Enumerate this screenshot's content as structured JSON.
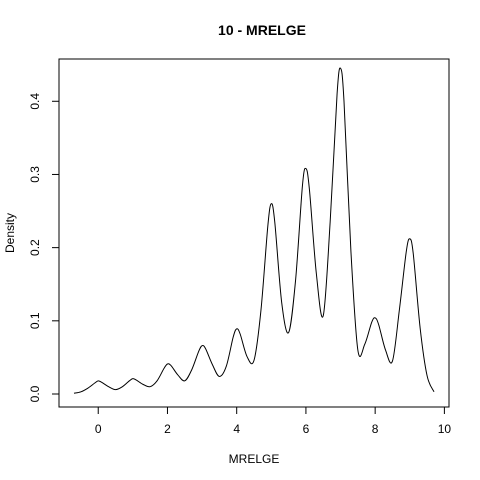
{
  "chart_data": {
    "type": "line",
    "title": "10 - MRELGE",
    "xlabel": "MRELGE",
    "ylabel": "Density",
    "xlim": [
      -0.7,
      9.7
    ],
    "ylim": [
      0.0,
      0.44
    ],
    "x_ticks": [
      0,
      2,
      4,
      6,
      8,
      10
    ],
    "x_tick_labels": [
      "0",
      "2",
      "4",
      "6",
      "8",
      "10"
    ],
    "y_ticks": [
      0.0,
      0.1,
      0.2,
      0.3,
      0.4
    ],
    "y_tick_labels": [
      "0.0",
      "0.1",
      "0.2",
      "0.3",
      "0.4"
    ],
    "grid": false,
    "legend": "none",
    "line_color": "#000000",
    "x": [
      -0.7,
      -0.5,
      -0.3,
      -0.1,
      0.0,
      0.1,
      0.3,
      0.5,
      0.7,
      0.9,
      1.0,
      1.1,
      1.3,
      1.5,
      1.7,
      1.9,
      2.0,
      2.1,
      2.3,
      2.5,
      2.7,
      2.9,
      3.0,
      3.1,
      3.3,
      3.5,
      3.7,
      3.9,
      4.0,
      4.1,
      4.3,
      4.5,
      4.7,
      4.9,
      5.0,
      5.1,
      5.3,
      5.5,
      5.7,
      5.9,
      6.0,
      6.1,
      6.3,
      6.5,
      6.7,
      6.9,
      7.0,
      7.1,
      7.3,
      7.5,
      7.7,
      7.9,
      8.0,
      8.1,
      8.3,
      8.5,
      8.7,
      8.9,
      9.0,
      9.1,
      9.3,
      9.5,
      9.7
    ],
    "y": [
      0.001,
      0.003,
      0.008,
      0.015,
      0.018,
      0.016,
      0.01,
      0.006,
      0.01,
      0.018,
      0.021,
      0.019,
      0.013,
      0.01,
      0.018,
      0.035,
      0.041,
      0.039,
      0.026,
      0.018,
      0.033,
      0.058,
      0.066,
      0.062,
      0.04,
      0.024,
      0.038,
      0.078,
      0.089,
      0.082,
      0.051,
      0.046,
      0.114,
      0.23,
      0.26,
      0.235,
      0.125,
      0.084,
      0.155,
      0.285,
      0.308,
      0.28,
      0.165,
      0.107,
      0.235,
      0.41,
      0.445,
      0.4,
      0.195,
      0.06,
      0.068,
      0.098,
      0.104,
      0.095,
      0.06,
      0.045,
      0.115,
      0.195,
      0.212,
      0.192,
      0.09,
      0.025,
      0.003
    ]
  }
}
